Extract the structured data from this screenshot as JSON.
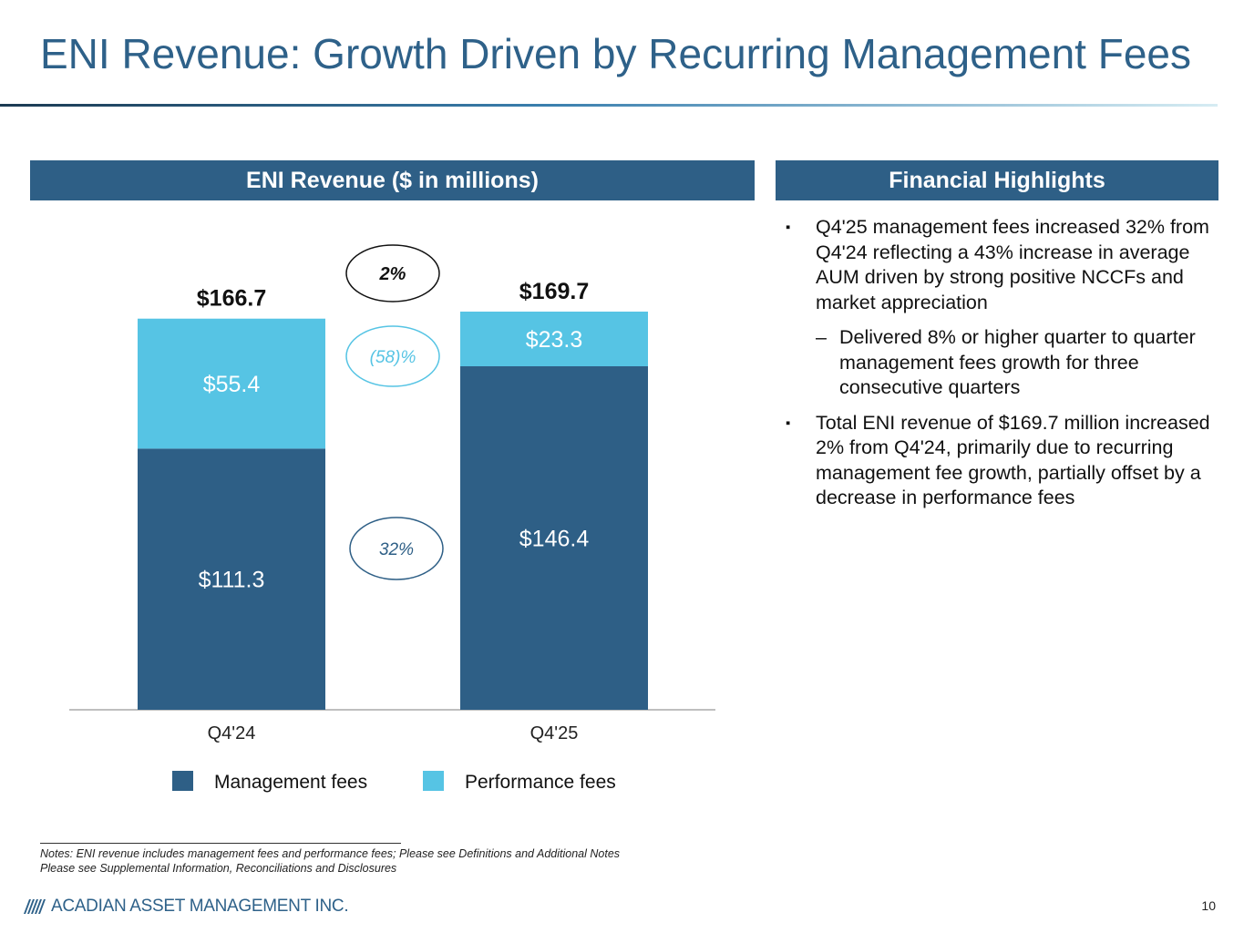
{
  "title": "ENI Revenue: Growth Driven by Recurring Management Fees",
  "left_header": "ENI Revenue ($ in millions)",
  "right_header": "Financial Highlights",
  "highlights": {
    "b1": "Q4'25 management fees increased 32% from Q4'24 reflecting a 43% increase in average AUM driven by strong positive NCCFs and market appreciation",
    "s1": "Delivered 8% or higher quarter to quarter management fees growth for three consecutive quarters",
    "b2": "Total ENI revenue of $169.7 million increased 2% from Q4'24, primarily due to recurring management fee growth, partially offset by a decrease in performance fees",
    "bullet_marker": "▪",
    "sub_marker": "–"
  },
  "chart_data": {
    "type": "bar",
    "stacked": true,
    "title": "ENI Revenue ($ in millions)",
    "categories": [
      "Q4'24",
      "Q4'25"
    ],
    "series": [
      {
        "name": "Management fees",
        "values": [
          111.3,
          146.4
        ],
        "labels": [
          "$111.3",
          "$146.4"
        ],
        "color": "#2e5f86"
      },
      {
        "name": "Performance fees",
        "values": [
          55.4,
          23.3
        ],
        "labels": [
          "$55.4",
          "$23.3"
        ],
        "color": "#56c4e4"
      }
    ],
    "totals": [
      166.7,
      169.7
    ],
    "total_labels": [
      "$166.7",
      "$169.7"
    ],
    "growth": {
      "total": "2%",
      "performance_fees": "(58)%",
      "management_fees": "32%"
    },
    "ylim": [
      0,
      169.7
    ],
    "xlabel": "",
    "ylabel": "",
    "legend": "bottom"
  },
  "notes": {
    "line1": "Notes: ENI revenue includes management fees and performance fees; Please see Definitions and Additional Notes",
    "line2": "Please see Supplemental Information, Reconciliations and Disclosures"
  },
  "footer": {
    "company": "ACADIAN ASSET MANAGEMENT INC.",
    "page": "10"
  },
  "colors": {
    "accent": "#2e6189",
    "management": "#2e5f86",
    "performance": "#56c4e4",
    "header_bg": "#2e5f86"
  }
}
